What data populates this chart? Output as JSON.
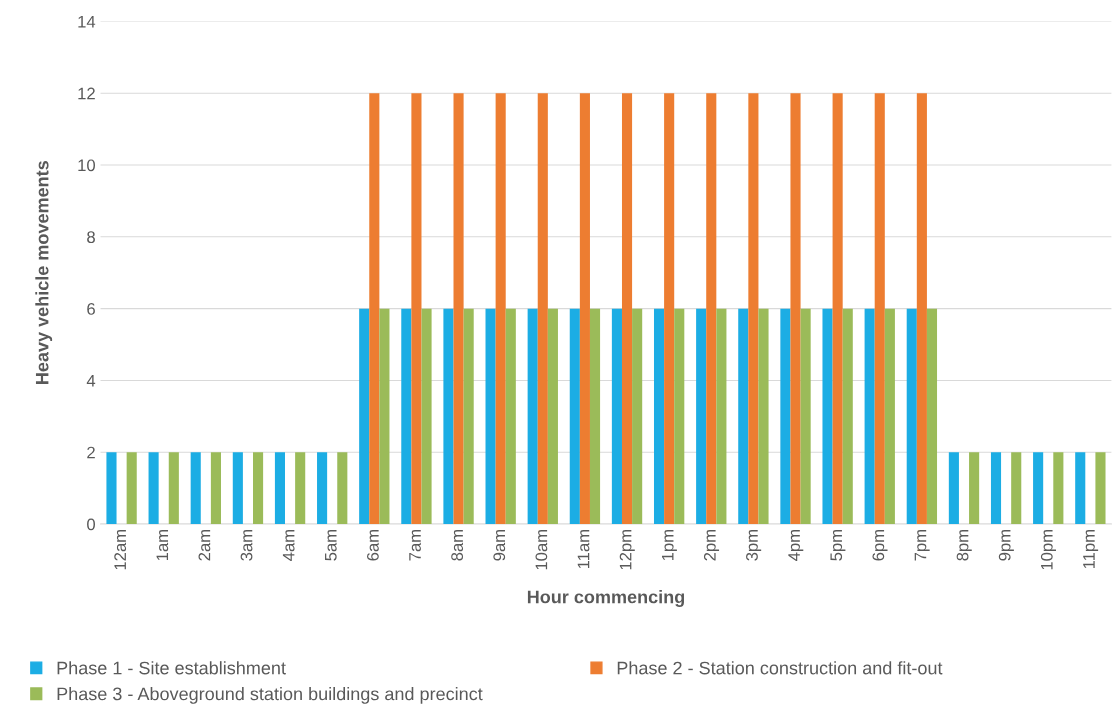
{
  "chart_data": {
    "type": "bar",
    "xlabel": "Hour commencing",
    "ylabel": "Heavy vehicle movements",
    "categories": [
      "12am",
      "1am",
      "2am",
      "3am",
      "4am",
      "5am",
      "6am",
      "7am",
      "8am",
      "9am",
      "10am",
      "11am",
      "12pm",
      "1pm",
      "2pm",
      "3pm",
      "4pm",
      "5pm",
      "6pm",
      "7pm",
      "8pm",
      "9pm",
      "10pm",
      "11pm"
    ],
    "series": [
      {
        "name": "Phase 1 - Site establishment",
        "color": "#1cade4",
        "values": [
          2,
          2,
          2,
          2,
          2,
          2,
          6,
          6,
          6,
          6,
          6,
          6,
          6,
          6,
          6,
          6,
          6,
          6,
          6,
          6,
          2,
          2,
          2,
          2
        ]
      },
      {
        "name": "Phase 2 - Station construction and fit-out",
        "color": "#ed7d31",
        "values": [
          0,
          0,
          0,
          0,
          0,
          0,
          12,
          12,
          12,
          12,
          12,
          12,
          12,
          12,
          12,
          12,
          12,
          12,
          12,
          12,
          0,
          0,
          0,
          0
        ]
      },
      {
        "name": "Phase 3 - Aboveground station buildings and precinct",
        "color": "#9bbb59",
        "values": [
          2,
          2,
          2,
          2,
          2,
          2,
          6,
          6,
          6,
          6,
          6,
          6,
          6,
          6,
          6,
          6,
          6,
          6,
          6,
          6,
          2,
          2,
          2,
          2
        ]
      }
    ],
    "ylim": [
      0,
      14
    ],
    "yticks": [
      0,
      2,
      4,
      6,
      8,
      10,
      12,
      14
    ],
    "grid": "y",
    "legend": "bottom"
  }
}
